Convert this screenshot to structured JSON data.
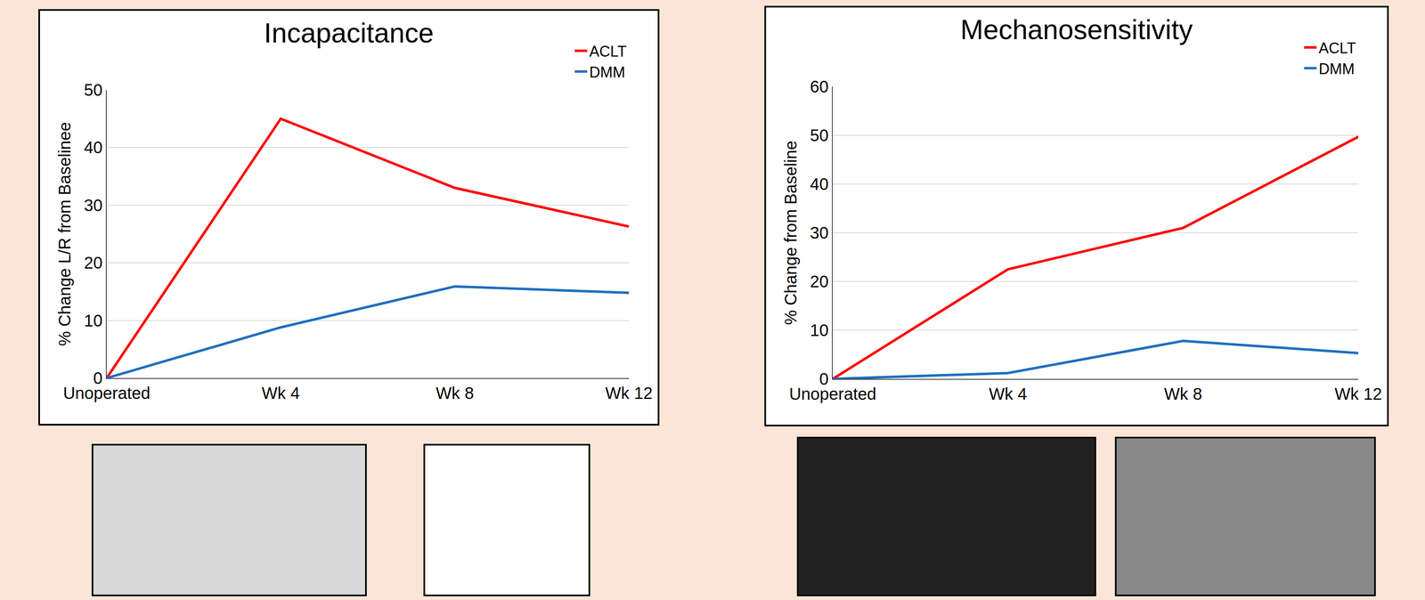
{
  "chart_data": [
    {
      "type": "line",
      "title": "Incapacitance",
      "y_label": "% Change L/R from Baselinee",
      "categories": [
        "Unoperated",
        "Wk 4",
        "Wk 8",
        "Wk 12"
      ],
      "series": [
        {
          "name": "ACLT",
          "color": "#ff0000",
          "values": [
            0,
            45,
            33,
            26.3
          ]
        },
        {
          "name": "DMM",
          "color": "#1f6fc0",
          "values": [
            0,
            8.8,
            15.9,
            14.8
          ]
        }
      ],
      "ylim": [
        0,
        50
      ],
      "yticks": [
        0,
        10,
        20,
        30,
        40,
        50
      ],
      "grid": true,
      "legend": "top right"
    },
    {
      "type": "line",
      "title": "Mechanosensitivity",
      "y_label": "% Change from Baseline",
      "categories": [
        "Unoperated",
        "Wk 4",
        "Wk 8",
        "Wk 12"
      ],
      "series": [
        {
          "name": "ACLT",
          "color": "#ff0000",
          "values": [
            0,
            22.5,
            31,
            49.7
          ]
        },
        {
          "name": "DMM",
          "color": "#1f6fc0",
          "values": [
            0,
            1.2,
            7.8,
            5.3
          ]
        }
      ],
      "ylim": [
        0,
        60
      ],
      "yticks": [
        0,
        10,
        20,
        30,
        40,
        50,
        60
      ],
      "grid": true,
      "legend": "top right"
    }
  ]
}
